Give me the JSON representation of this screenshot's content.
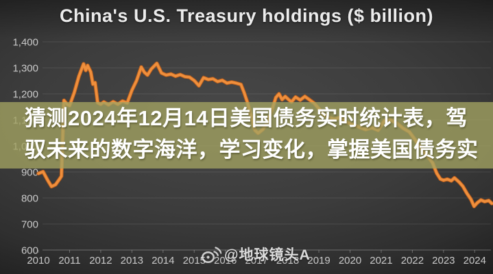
{
  "title": "China's U.S. Treasury holdings ($ billion)",
  "overlay_banner": {
    "line1": "猜测2024年12月14日美国债务实时统计表，驾",
    "line2": "驭未来的数字海洋，学习变化，掌握美国债务实"
  },
  "watermark": {
    "icon": "weibo-icon",
    "text": "@地球镜头A"
  },
  "colors": {
    "line": "#ef8f3c",
    "line_edge": "#b85e1e",
    "banner": "rgba(163,163,97,0.78)",
    "background": "#3c3c3c",
    "grid": "rgba(255,255,255,0.10)",
    "axis": "rgba(255,255,255,0.30)",
    "tick_label": "#c9c9c9",
    "title_text": "#ececec"
  },
  "chart_data": {
    "type": "line",
    "title": "China's U.S. Treasury holdings ($ billion)",
    "xlabel": "",
    "ylabel": "$ billion",
    "xlim": [
      2010,
      2024.6
    ],
    "ylim": [
      600,
      1400
    ],
    "grid": true,
    "legend": "none",
    "x_axis": {
      "tick_values": [
        2010,
        2011,
        2012,
        2013,
        2014,
        2015,
        2016,
        2017,
        2018,
        2019,
        2020,
        2021,
        2022,
        2023,
        2024
      ],
      "tick_labels": [
        "2010",
        "2011",
        "2012",
        "2013",
        "2014",
        "2015",
        "2016",
        "2017",
        "2018",
        "2019",
        "2020",
        "2021",
        "2022",
        "2023",
        "2024"
      ]
    },
    "y_axis": {
      "tick_values": [
        1400,
        1300,
        1200,
        1100,
        1000,
        900,
        800,
        700,
        600
      ],
      "tick_labels": [
        "1,400",
        "1,300",
        "1,200",
        "1,100",
        "1,000",
        "900",
        "800",
        "700",
        "600"
      ]
    },
    "series": [
      {
        "name": "China's U.S. Treasury holdings",
        "points": [
          [
            2010.0,
            894
          ],
          [
            2010.15,
            901
          ],
          [
            2010.3,
            868
          ],
          [
            2010.42,
            844
          ],
          [
            2010.55,
            851
          ],
          [
            2010.68,
            873
          ],
          [
            2010.74,
            884
          ],
          [
            2010.82,
            1175
          ],
          [
            2010.92,
            1160
          ],
          [
            2011.0,
            1155
          ],
          [
            2011.15,
            1205
          ],
          [
            2011.3,
            1268
          ],
          [
            2011.45,
            1315
          ],
          [
            2011.52,
            1290
          ],
          [
            2011.58,
            1309
          ],
          [
            2011.68,
            1284
          ],
          [
            2011.75,
            1237
          ],
          [
            2011.82,
            1243
          ],
          [
            2011.9,
            1166
          ],
          [
            2012.0,
            1160
          ],
          [
            2012.1,
            1169
          ],
          [
            2012.25,
            1158
          ],
          [
            2012.4,
            1170
          ],
          [
            2012.55,
            1160
          ],
          [
            2012.7,
            1172
          ],
          [
            2012.85,
            1165
          ],
          [
            2013.0,
            1214
          ],
          [
            2013.15,
            1251
          ],
          [
            2013.3,
            1303
          ],
          [
            2013.4,
            1283
          ],
          [
            2013.5,
            1272
          ],
          [
            2013.62,
            1295
          ],
          [
            2013.8,
            1317
          ],
          [
            2013.95,
            1280
          ],
          [
            2014.1,
            1272
          ],
          [
            2014.25,
            1276
          ],
          [
            2014.4,
            1268
          ],
          [
            2014.55,
            1274
          ],
          [
            2014.7,
            1266
          ],
          [
            2014.85,
            1264
          ],
          [
            2015.0,
            1251
          ],
          [
            2015.15,
            1231
          ],
          [
            2015.3,
            1262
          ],
          [
            2015.45,
            1255
          ],
          [
            2015.6,
            1258
          ],
          [
            2015.75,
            1247
          ],
          [
            2015.9,
            1252
          ],
          [
            2016.05,
            1241
          ],
          [
            2016.2,
            1245
          ],
          [
            2016.35,
            1241
          ],
          [
            2016.5,
            1236
          ],
          [
            2016.6,
            1205
          ],
          [
            2016.7,
            1170
          ],
          [
            2016.82,
            1118
          ],
          [
            2016.95,
            1060
          ],
          [
            2017.05,
            1049
          ],
          [
            2017.2,
            1063
          ],
          [
            2017.35,
            1090
          ],
          [
            2017.5,
            1140
          ],
          [
            2017.62,
            1186
          ],
          [
            2017.72,
            1200
          ],
          [
            2017.82,
            1178
          ],
          [
            2017.92,
            1190
          ],
          [
            2018.02,
            1179
          ],
          [
            2018.12,
            1169
          ],
          [
            2018.25,
            1188
          ],
          [
            2018.4,
            1176
          ],
          [
            2018.55,
            1190
          ],
          [
            2018.7,
            1177
          ],
          [
            2018.85,
            1164
          ],
          [
            2019.0,
            1143
          ],
          [
            2019.15,
            1121
          ],
          [
            2019.3,
            1110
          ],
          [
            2019.5,
            1103
          ],
          [
            2019.7,
            1110
          ],
          [
            2019.9,
            1090
          ],
          [
            2020.1,
            1081
          ],
          [
            2020.3,
            1072
          ],
          [
            2020.5,
            1063
          ],
          [
            2020.7,
            1070
          ],
          [
            2020.9,
            1060
          ],
          [
            2021.1,
            1096
          ],
          [
            2021.3,
            1100
          ],
          [
            2021.5,
            1087
          ],
          [
            2021.7,
            1068
          ],
          [
            2021.9,
            1054
          ],
          [
            2022.05,
            1030
          ],
          [
            2022.2,
            1004
          ],
          [
            2022.35,
            980
          ],
          [
            2022.5,
            960
          ],
          [
            2022.65,
            935
          ],
          [
            2022.78,
            895
          ],
          [
            2022.9,
            873
          ],
          [
            2023.0,
            868
          ],
          [
            2023.12,
            872
          ],
          [
            2023.25,
            866
          ],
          [
            2023.35,
            877
          ],
          [
            2023.5,
            861
          ],
          [
            2023.62,
            845
          ],
          [
            2023.75,
            818
          ],
          [
            2023.88,
            795
          ],
          [
            2023.98,
            768
          ],
          [
            2024.08,
            781
          ],
          [
            2024.2,
            792
          ],
          [
            2024.32,
            786
          ],
          [
            2024.45,
            790
          ],
          [
            2024.55,
            779
          ]
        ]
      }
    ]
  }
}
